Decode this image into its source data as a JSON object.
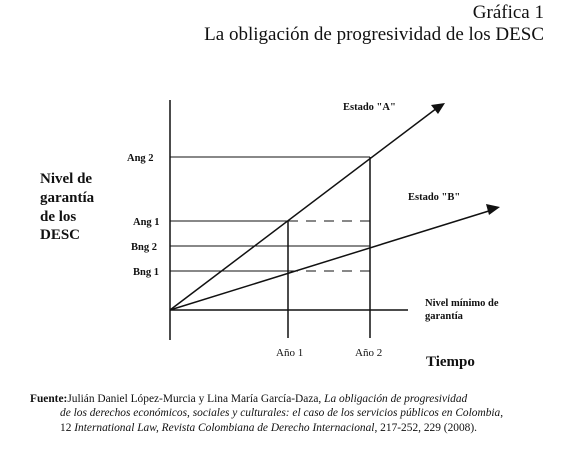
{
  "header": {
    "kicker": "Gráfica 1",
    "title": "La obligación de progresividad de los DESC"
  },
  "y_axis_label": "Nivel de\ngarantía\nde los\nDESC",
  "x_axis_label": "Tiempo",
  "tick_labels": {
    "x": [
      "Año 1",
      "Año 2"
    ],
    "y": [
      "Ang 2",
      "Ang 1",
      "Bng 2",
      "Bng 1"
    ]
  },
  "annotations": {
    "estado_a": "Estado \"A\"",
    "estado_b": "Estado \"B\"",
    "minimum_line_1": "Nivel mínimo de",
    "minimum_line_2": "garantía"
  },
  "source": {
    "label": "Fuente:",
    "line1_plain": "Julián Daniel López-Murcia y Lina María García-Daza, ",
    "line1_italic": "La obligación de progresividad",
    "line2_italic": "de los derechos económicos, sociales y culturales: el caso de los servicios públicos en Colombia",
    "line2_plain": ",",
    "line3_plain_a": "12 ",
    "line3_italic": "International Law,  Revista Colombiana de Derecho Internacional",
    "line3_plain_b": ", 217-252, 229 (2008)."
  },
  "colors": {
    "ink": "#111111",
    "background": "#ffffff"
  }
}
